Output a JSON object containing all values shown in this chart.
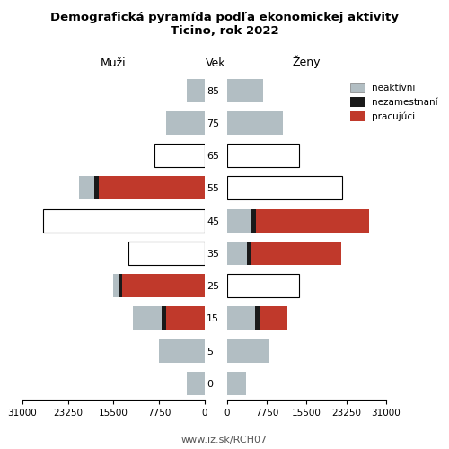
{
  "title_line1": "Demografická pyramída podľa ekonomickej aktivity",
  "title_line2": "Ticino, rok 2022",
  "label_males": "Muži",
  "label_age": "Vek",
  "label_females": "Ženy",
  "footer": "www.iz.sk/RCH07",
  "age_groups": [
    0,
    5,
    15,
    25,
    35,
    45,
    55,
    65,
    75,
    85
  ],
  "xlim": 31000,
  "color_neaktivni": "#b2bec3",
  "color_nezam": "#1a1a1a",
  "color_pracujuci": "#c0392b",
  "legend_labels": [
    "neaktívni",
    "nezamestnaní",
    "pracujúci"
  ],
  "bar_height": 0.72,
  "males_neaktivni": [
    3000,
    7800,
    5000,
    1000,
    0,
    0,
    2500,
    0,
    6500,
    3000
  ],
  "males_nezam": [
    0,
    0,
    700,
    600,
    0,
    0,
    800,
    0,
    0,
    0
  ],
  "males_pracujuci": [
    0,
    0,
    6500,
    14000,
    0,
    0,
    18000,
    0,
    0,
    0
  ],
  "males_outline": [
    0,
    0,
    0,
    0,
    13000,
    27500,
    0,
    8500,
    0,
    0
  ],
  "females_neaktivni": [
    3800,
    8200,
    5500,
    0,
    4000,
    4800,
    0,
    0,
    11000,
    7000
  ],
  "females_nezam": [
    0,
    0,
    800,
    0,
    700,
    900,
    0,
    0,
    0,
    0
  ],
  "females_pracujuci": [
    0,
    0,
    5500,
    0,
    17500,
    22000,
    0,
    0,
    0,
    0
  ],
  "females_outline": [
    0,
    0,
    0,
    14000,
    0,
    0,
    22500,
    14000,
    0,
    0
  ]
}
